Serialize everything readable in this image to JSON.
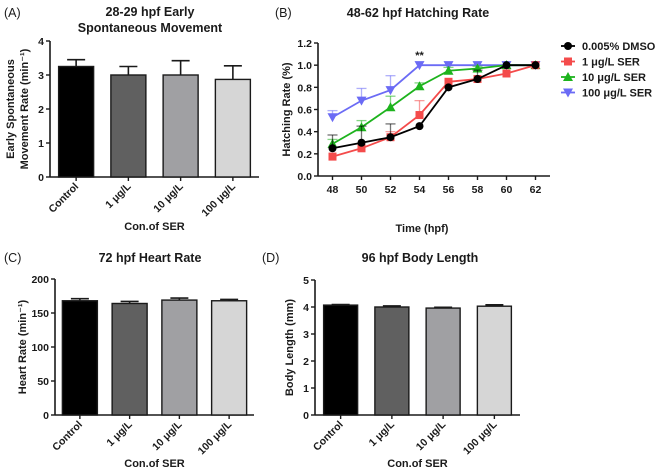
{
  "chart_data": [
    {
      "id": "A",
      "panel_label": "(A)",
      "type": "bar",
      "title_lines": [
        "28-29 hpf Early",
        "Spontaneous Movement"
      ],
      "xlabel": "Con.of SER",
      "ylabel_lines": [
        "Early Spontaneous",
        "Movement Rate (min⁻¹)"
      ],
      "categories": [
        "Control",
        "1 μg/L",
        "10 μg/L",
        "100 μg/L"
      ],
      "values": [
        3.25,
        3.0,
        3.0,
        2.87
      ],
      "error_upper": [
        0.2,
        0.25,
        0.42,
        0.4
      ],
      "colors": [
        "#000000",
        "#606060",
        "#a0a0a3",
        "#d6d6d6"
      ],
      "ylim": [
        0,
        4
      ],
      "yticks": [
        0,
        1,
        2,
        3,
        4
      ],
      "ytick_labels": [
        "0",
        "1",
        "2",
        "3",
        "4"
      ]
    },
    {
      "id": "B",
      "panel_label": "(B)",
      "type": "line",
      "title_lines": [
        "48-62 hpf Hatching Rate"
      ],
      "xlabel": "Time (hpf)",
      "ylabel_lines": [
        "Hatching Rate (%)"
      ],
      "x": [
        48,
        50,
        52,
        54,
        56,
        58,
        60,
        62
      ],
      "xlim": [
        47,
        63
      ],
      "xticks": [
        48,
        50,
        52,
        54,
        56,
        58,
        60,
        62
      ],
      "xtick_labels": [
        "48",
        "50",
        "52",
        "54",
        "56",
        "58",
        "60",
        "62"
      ],
      "ylim": [
        0,
        1.2
      ],
      "yticks": [
        0,
        0.2,
        0.4,
        0.6,
        0.8,
        1.0,
        1.2
      ],
      "ytick_labels": [
        "0.0",
        "0.2",
        "0.4",
        "0.6",
        "0.8",
        "1.0",
        "1.2"
      ],
      "legend_position": "right",
      "series": [
        {
          "name": "100 μg/L SER",
          "color": "#6b6bf5",
          "marker": "triangle-down",
          "values": [
            0.53,
            0.68,
            0.775,
            1.0,
            1.0,
            1.0,
            1.0,
            1.0
          ],
          "error_upper": [
            0.06,
            0.11,
            0.13,
            0.0,
            0.0,
            0.0,
            0.0,
            0.0
          ]
        },
        {
          "name": "10 μg/L SER",
          "color": "#1db31d",
          "marker": "triangle-up",
          "values": [
            0.29,
            0.44,
            0.62,
            0.81,
            0.95,
            0.97,
            1.0,
            1.0
          ],
          "error_upper": [
            0.04,
            0.06,
            0.1,
            0.03,
            0.03,
            0.02,
            0.0,
            0.0
          ]
        },
        {
          "name": "1 μg/L SER",
          "color": "#f44b4b",
          "marker": "square",
          "values": [
            0.175,
            0.25,
            0.35,
            0.55,
            0.85,
            0.875,
            0.925,
            1.0
          ],
          "error_upper": [
            0.0,
            0.0,
            0.05,
            0.13,
            0.0,
            0.0,
            0.0,
            0.0
          ]
        },
        {
          "name": "0.005% DMSO",
          "color": "#000000",
          "marker": "circle",
          "values": [
            0.25,
            0.3,
            0.35,
            0.45,
            0.8,
            0.875,
            1.0,
            1.0
          ],
          "error_upper": [
            0.12,
            0.15,
            0.12,
            0.0,
            0.0,
            0.08,
            0.0,
            0.0
          ]
        }
      ],
      "legend_order": [
        "0.005% DMSO",
        "1 μg/L SER",
        "10 μg/L SER",
        "100 μg/L SER"
      ],
      "annotations": [
        {
          "text": "**",
          "x": 54,
          "y": 1.0
        }
      ]
    },
    {
      "id": "C",
      "panel_label": "(C)",
      "type": "bar",
      "title_lines": [
        "72 hpf Heart Rate"
      ],
      "xlabel": "Con.of SER",
      "ylabel_lines": [
        "Heart Rate (min⁻¹)"
      ],
      "categories": [
        "Control",
        "1 μg/L",
        "10 μg/L",
        "100 μg/L"
      ],
      "values": [
        168,
        164,
        169,
        168
      ],
      "error_upper": [
        3,
        3,
        3,
        2
      ],
      "colors": [
        "#000000",
        "#606060",
        "#a0a0a3",
        "#d6d6d6"
      ],
      "ylim": [
        0,
        200
      ],
      "yticks": [
        0,
        50,
        100,
        150,
        200
      ],
      "ytick_labels": [
        "0",
        "50",
        "100",
        "150",
        "200"
      ]
    },
    {
      "id": "D",
      "panel_label": "(D)",
      "type": "bar",
      "title_lines": [
        "96 hpf Body Length"
      ],
      "xlabel": "Con.of SER",
      "ylabel_lines": [
        "Body Length (mm)"
      ],
      "categories": [
        "Control",
        "1 μg/L",
        "10 μg/L",
        "100 μg/L"
      ],
      "values": [
        4.07,
        4.0,
        3.96,
        4.03
      ],
      "error_upper": [
        0.02,
        0.04,
        0.03,
        0.05
      ],
      "colors": [
        "#000000",
        "#606060",
        "#a0a0a3",
        "#d6d6d6"
      ],
      "ylim": [
        0,
        5
      ],
      "yticks": [
        0,
        1,
        2,
        3,
        4,
        5
      ],
      "ytick_labels": [
        "0",
        "1",
        "2",
        "3",
        "4",
        "5"
      ]
    }
  ]
}
